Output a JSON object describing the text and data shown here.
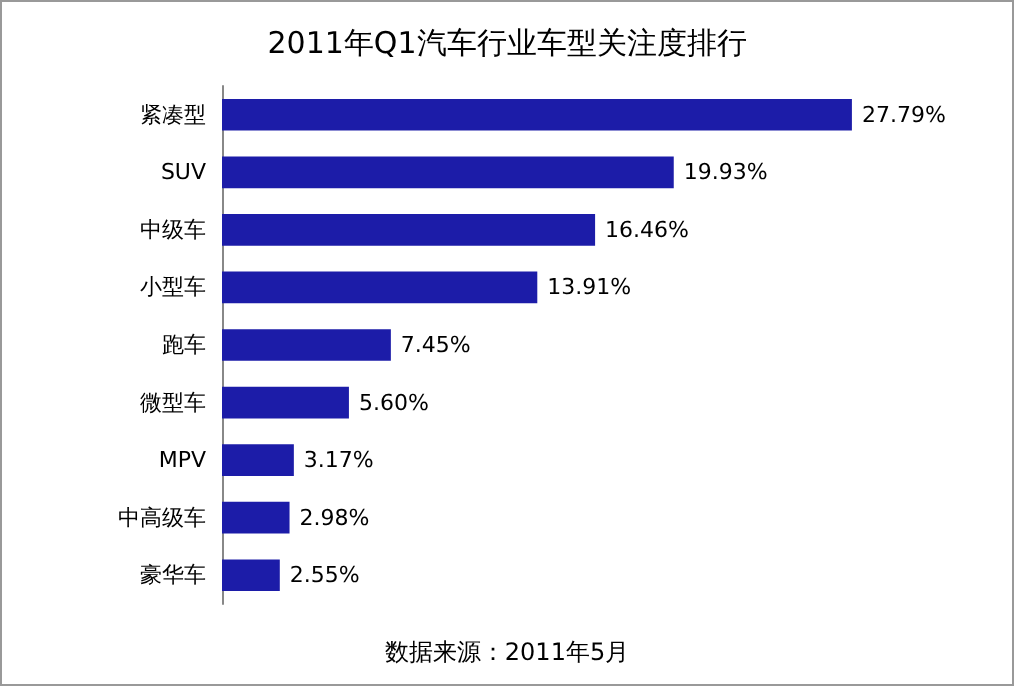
{
  "chart_data": {
    "type": "bar",
    "orientation": "horizontal",
    "title": "2011年Q1汽车行业车型关注度排行",
    "categories": [
      "紧凑型",
      "SUV",
      "中级车",
      "小型车",
      "跑车",
      "微型车",
      "MPV",
      "中高级车",
      "豪华车"
    ],
    "values": [
      27.79,
      19.93,
      16.46,
      13.91,
      7.45,
      5.6,
      3.17,
      2.98,
      2.55
    ],
    "value_labels": [
      "27.79%",
      "19.93%",
      "16.46%",
      "13.91%",
      "7.45%",
      "5.60%",
      "3.17%",
      "2.98%",
      "2.55%"
    ],
    "color": "#1c1ca8",
    "annotations": [
      "数据来源：2011年5月"
    ]
  }
}
